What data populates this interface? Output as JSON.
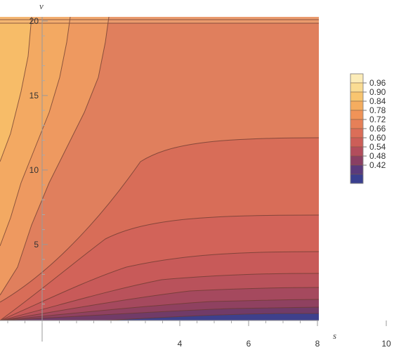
{
  "chart_data": {
    "type": "contour",
    "xlabel": "s",
    "ylabel": "v",
    "xlim": [
      -1.2,
      10
    ],
    "ylim": [
      -0.1,
      20.5
    ],
    "x_ticks": [
      4,
      6,
      8,
      10
    ],
    "x_tick_labels": [
      "4",
      "6",
      "8",
      "10"
    ],
    "y_ticks": [
      5,
      10,
      15,
      20
    ],
    "y_tick_labels": [
      "5",
      "10",
      "15",
      "20"
    ],
    "legend": {
      "placement": "right",
      "levels": [
        0.96,
        0.9,
        0.84,
        0.78,
        0.72,
        0.66,
        0.6,
        0.54,
        0.48,
        0.42
      ],
      "labels": [
        "0.96",
        "0.90",
        "0.84",
        "0.78",
        "0.72",
        "0.66",
        "0.60",
        "0.54",
        "0.48",
        "0.42"
      ],
      "band_colors": [
        "#fcecb8",
        "#fadc93",
        "#f8c56f",
        "#f5ad5f",
        "#f09358",
        "#e68058",
        "#db6e58",
        "#cc5e58",
        "#b24d5c",
        "#8a3f63",
        "#5a3a7c",
        "#3a3f8f"
      ]
    },
    "grid": false
  }
}
